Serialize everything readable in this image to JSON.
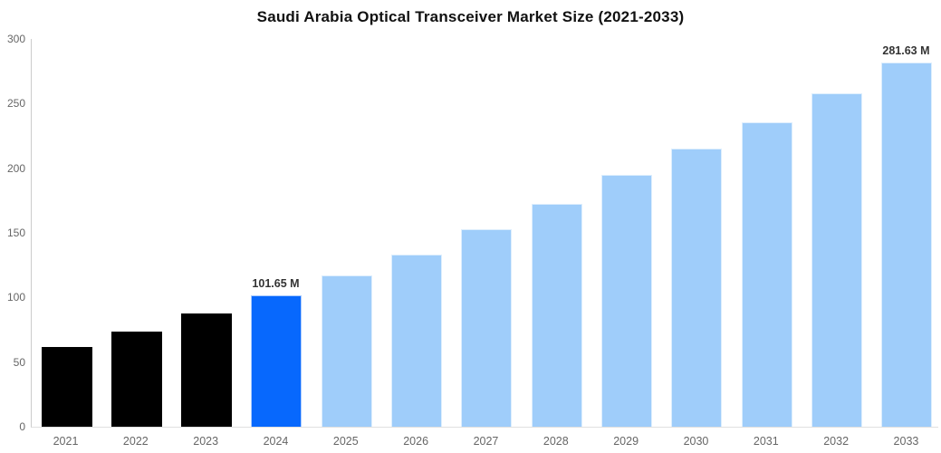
{
  "title": "Saudi Arabia Optical Transceiver Market Size (2021-2033)",
  "colors": {
    "historical_bar": "#000000",
    "highlight_bar": "#0768fd",
    "forecast_bar": "#9fcdfa",
    "axis_line": "#cccccc",
    "baseline": "#e0e0e0",
    "tick_label": "#666666",
    "data_label": "#333333",
    "title_text": "#111111",
    "background": "#ffffff"
  },
  "chart_data": {
    "type": "bar",
    "title": "Saudi Arabia Optical Transceiver Market Size (2021-2033)",
    "categories": [
      "2021",
      "2022",
      "2023",
      "2024",
      "2025",
      "2026",
      "2027",
      "2028",
      "2029",
      "2030",
      "2031",
      "2032",
      "2033"
    ],
    "values": [
      61.5,
      73.5,
      87.5,
      101.65,
      117,
      133.5,
      152.5,
      172.5,
      195,
      215,
      235.5,
      258,
      281.63
    ],
    "bar_styles": [
      "historical",
      "historical",
      "historical",
      "highlight",
      "forecast",
      "forecast",
      "forecast",
      "forecast",
      "forecast",
      "forecast",
      "forecast",
      "forecast",
      "forecast"
    ],
    "data_labels": {
      "3": "101.65 M",
      "12": "281.63 M"
    },
    "xlabel": "",
    "ylabel": "",
    "ylim": [
      0,
      300
    ],
    "yticks": [
      0,
      50,
      100,
      150,
      200,
      250,
      300
    ],
    "grid": false,
    "legend": "none"
  }
}
